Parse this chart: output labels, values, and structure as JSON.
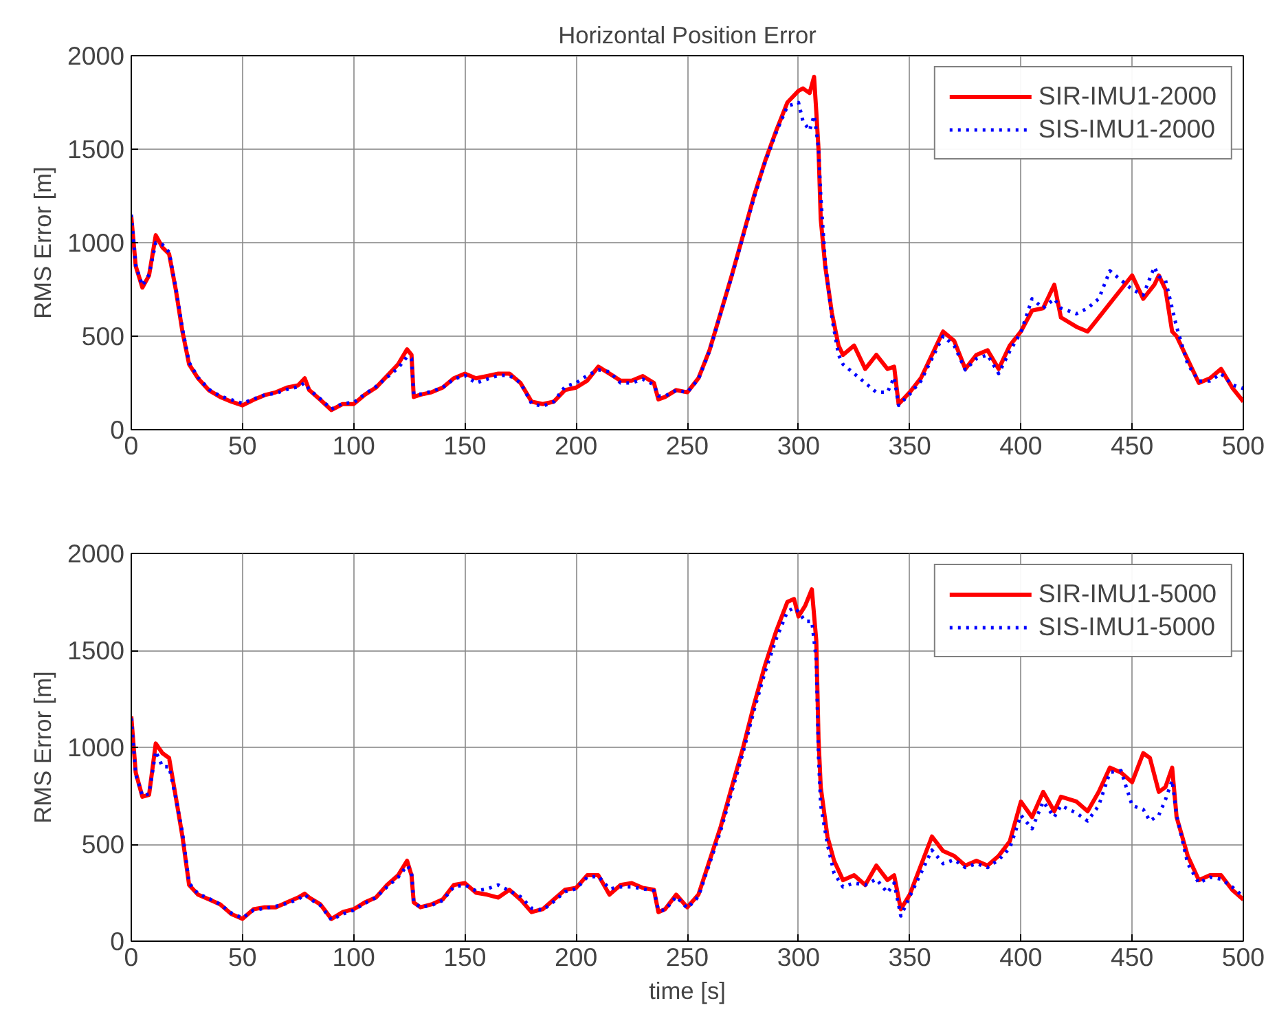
{
  "chart_data": [
    {
      "type": "line",
      "title": "Horizontal Position Error",
      "ylabel": "RMS Error [m]",
      "xlim": [
        0,
        500
      ],
      "ylim": [
        0,
        2000
      ],
      "xticks": [
        0,
        50,
        100,
        150,
        200,
        250,
        300,
        350,
        400,
        450,
        500
      ],
      "yticks": [
        0,
        500,
        1000,
        1500,
        2000
      ],
      "grid": true,
      "legend": "top right",
      "marker": "none",
      "x": [
        0,
        2,
        5,
        8,
        11,
        14,
        17,
        20,
        23,
        26,
        30,
        35,
        40,
        45,
        50,
        55,
        60,
        65,
        70,
        75,
        78,
        80,
        85,
        90,
        95,
        100,
        105,
        110,
        115,
        120,
        124,
        126,
        127,
        130,
        135,
        140,
        145,
        150,
        155,
        160,
        165,
        170,
        175,
        180,
        185,
        190,
        195,
        200,
        205,
        210,
        215,
        220,
        225,
        230,
        235,
        237,
        240,
        245,
        250,
        255,
        260,
        265,
        270,
        275,
        280,
        285,
        290,
        295,
        300,
        302,
        305,
        307,
        308,
        309,
        310,
        312,
        315,
        318,
        320,
        325,
        330,
        335,
        340,
        343,
        345,
        350,
        355,
        360,
        365,
        370,
        375,
        380,
        385,
        390,
        395,
        400,
        405,
        410,
        415,
        418,
        425,
        430,
        435,
        440,
        445,
        450,
        455,
        460,
        462,
        465,
        468,
        470,
        475,
        480,
        485,
        490,
        495,
        500
      ],
      "series": [
        {
          "name": "SIR-IMU1-2000",
          "color": "#ff0000",
          "line_style": "solid",
          "values": [
            1140,
            875,
            760,
            825,
            1040,
            975,
            940,
            750,
            525,
            350,
            275,
            210,
            175,
            150,
            130,
            160,
            185,
            200,
            225,
            237,
            275,
            212,
            160,
            105,
            137,
            137,
            187,
            225,
            287,
            350,
            430,
            400,
            175,
            187,
            200,
            225,
            275,
            300,
            275,
            287,
            300,
            300,
            250,
            150,
            137,
            150,
            212,
            225,
            262,
            337,
            300,
            262,
            262,
            287,
            250,
            162,
            175,
            212,
            200,
            275,
            425,
            625,
            825,
            1037,
            1250,
            1437,
            1600,
            1750,
            1812,
            1825,
            1800,
            1887,
            1700,
            1500,
            1125,
            875,
            625,
            450,
            400,
            450,
            325,
            400,
            325,
            337,
            137,
            200,
            275,
            400,
            525,
            475,
            325,
            400,
            425,
            325,
            450,
            525,
            637,
            650,
            775,
            600,
            550,
            525,
            600,
            675,
            750,
            825,
            700,
            775,
            825,
            750,
            525,
            500,
            375,
            250,
            275,
            325,
            225,
            150
          ]
        },
        {
          "name": "SIS-IMU1-2000",
          "color": "#0000ff",
          "line_style": "dotted",
          "values": [
            1150,
            880,
            770,
            830,
            1000,
            990,
            950,
            760,
            540,
            360,
            280,
            215,
            180,
            160,
            140,
            165,
            185,
            195,
            215,
            230,
            250,
            215,
            165,
            110,
            140,
            145,
            190,
            230,
            280,
            330,
            390,
            380,
            190,
            190,
            205,
            225,
            270,
            290,
            250,
            270,
            290,
            290,
            250,
            140,
            125,
            150,
            230,
            250,
            290,
            320,
            310,
            250,
            250,
            270,
            240,
            180,
            180,
            210,
            200,
            270,
            420,
            620,
            820,
            1030,
            1240,
            1430,
            1590,
            1730,
            1750,
            1650,
            1600,
            1680,
            1600,
            1500,
            1250,
            900,
            600,
            400,
            350,
            300,
            250,
            200,
            200,
            280,
            130,
            190,
            260,
            380,
            500,
            450,
            320,
            380,
            400,
            300,
            420,
            520,
            700,
            650,
            700,
            650,
            620,
            650,
            700,
            850,
            800,
            750,
            720,
            870,
            820,
            800,
            650,
            550,
            350,
            260,
            260,
            300,
            240,
            220
          ]
        }
      ]
    },
    {
      "type": "line",
      "xlabel": "time [s]",
      "ylabel": "RMS Error [m]",
      "xlim": [
        0,
        500
      ],
      "ylim": [
        0,
        2000
      ],
      "xticks": [
        0,
        50,
        100,
        150,
        200,
        250,
        300,
        350,
        400,
        450,
        500
      ],
      "yticks": [
        0,
        500,
        1000,
        1500,
        2000
      ],
      "grid": true,
      "legend": "top right",
      "marker": "none",
      "x": [
        0,
        2,
        5,
        8,
        11,
        14,
        17,
        20,
        23,
        26,
        30,
        35,
        40,
        45,
        50,
        55,
        60,
        65,
        70,
        75,
        78,
        80,
        85,
        90,
        95,
        100,
        105,
        110,
        115,
        120,
        124,
        126,
        127,
        130,
        135,
        140,
        145,
        150,
        155,
        160,
        165,
        170,
        175,
        180,
        185,
        190,
        195,
        200,
        205,
        210,
        215,
        220,
        225,
        230,
        235,
        237,
        240,
        245,
        250,
        255,
        260,
        265,
        270,
        275,
        280,
        285,
        290,
        295,
        298,
        300,
        303,
        306,
        308,
        309,
        310,
        313,
        316,
        320,
        325,
        330,
        335,
        340,
        343,
        346,
        350,
        355,
        360,
        365,
        370,
        375,
        380,
        385,
        390,
        395,
        400,
        405,
        410,
        415,
        418,
        425,
        430,
        435,
        440,
        445,
        450,
        455,
        458,
        462,
        465,
        468,
        470,
        475,
        480,
        485,
        490,
        495,
        500
      ],
      "series": [
        {
          "name": "SIR-IMU1-5000",
          "color": "#ff0000",
          "line_style": "solid",
          "values": [
            1160,
            870,
            745,
            755,
            1020,
            970,
            945,
            745,
            540,
            290,
            240,
            215,
            190,
            140,
            115,
            165,
            175,
            175,
            200,
            225,
            245,
            225,
            190,
            115,
            150,
            165,
            200,
            225,
            290,
            340,
            415,
            340,
            200,
            175,
            190,
            215,
            290,
            300,
            250,
            240,
            225,
            265,
            215,
            150,
            165,
            215,
            265,
            275,
            340,
            340,
            240,
            290,
            300,
            275,
            265,
            150,
            165,
            240,
            175,
            240,
            415,
            590,
            795,
            995,
            1220,
            1425,
            1600,
            1750,
            1765,
            1675,
            1730,
            1815,
            1550,
            1045,
            795,
            540,
            415,
            315,
            340,
            290,
            390,
            315,
            340,
            165,
            240,
            390,
            540,
            465,
            440,
            390,
            415,
            390,
            440,
            515,
            720,
            640,
            770,
            670,
            745,
            720,
            670,
            770,
            895,
            870,
            820,
            970,
            945,
            770,
            795,
            895,
            640,
            440,
            315,
            340,
            340,
            265,
            215
          ]
        },
        {
          "name": "SIS-IMU1-5000",
          "color": "#0000ff",
          "line_style": "dotted",
          "values": [
            1150,
            860,
            750,
            760,
            980,
            900,
            900,
            740,
            560,
            300,
            245,
            220,
            190,
            145,
            120,
            160,
            170,
            180,
            195,
            215,
            240,
            220,
            185,
            110,
            140,
            160,
            195,
            225,
            280,
            330,
            390,
            360,
            200,
            175,
            185,
            210,
            280,
            290,
            260,
            270,
            290,
            260,
            230,
            170,
            160,
            205,
            255,
            270,
            330,
            335,
            270,
            280,
            280,
            270,
            260,
            160,
            160,
            230,
            170,
            230,
            400,
            570,
            770,
            970,
            1190,
            1390,
            1560,
            1700,
            1720,
            1700,
            1650,
            1650,
            1450,
            950,
            700,
            500,
            350,
            280,
            300,
            290,
            320,
            250,
            300,
            130,
            230,
            350,
            470,
            400,
            420,
            380,
            400,
            380,
            420,
            480,
            650,
            580,
            720,
            640,
            700,
            660,
            620,
            700,
            870,
            880,
            700,
            680,
            620,
            650,
            730,
            830,
            650,
            400,
            300,
            330,
            320,
            280,
            230
          ]
        }
      ]
    }
  ]
}
